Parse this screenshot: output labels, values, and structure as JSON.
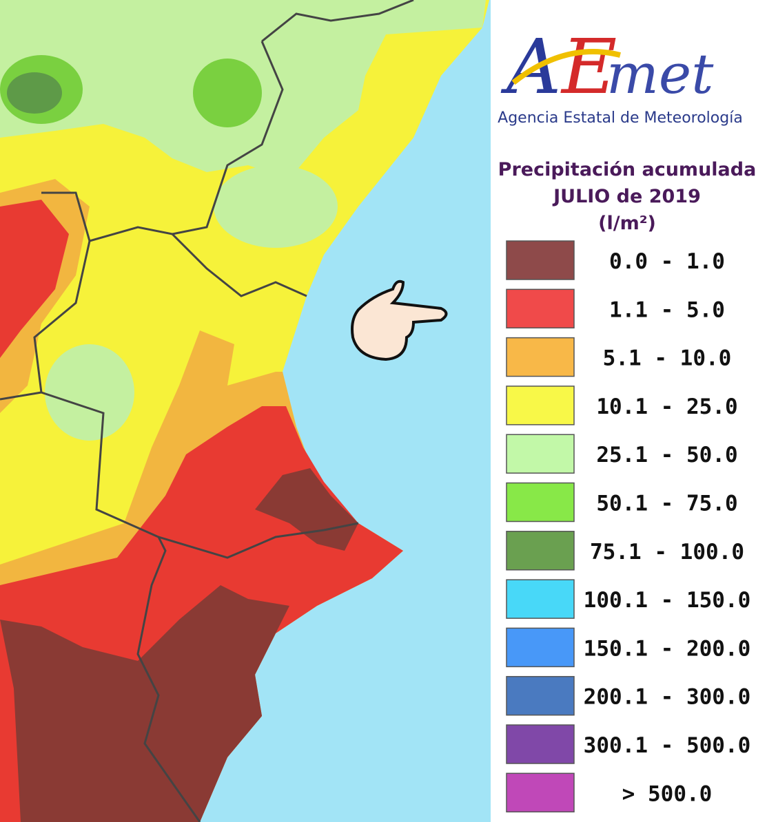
{
  "logo": {
    "parts": [
      {
        "text": "A",
        "color": "#2a3a9a"
      },
      {
        "text": "E",
        "color": "#d42a2a"
      },
      {
        "text": "met",
        "color": "#3a4aa8"
      }
    ],
    "agency": "Agencia Estatal de Meteorología"
  },
  "title": {
    "lines": [
      "Precipitación acumulada",
      "JULIO de 2019",
      "(l/m²)"
    ]
  },
  "legend": {
    "items": [
      {
        "label": "0.0 - 1.0",
        "color": "#8e4a4a"
      },
      {
        "label": "1.1 - 5.0",
        "color": "#f04a4a"
      },
      {
        "label": "5.1 - 10.0",
        "color": "#f8b848"
      },
      {
        "label": "10.1 - 25.0",
        "color": "#f8f848"
      },
      {
        "label": "25.1 - 50.0",
        "color": "#c2f8a8"
      },
      {
        "label": "50.1 - 75.0",
        "color": "#88e848"
      },
      {
        "label": "75.1 - 100.0",
        "color": "#6aa050"
      },
      {
        "label": "100.1 - 150.0",
        "color": "#48d8f8"
      },
      {
        "label": "150.1 - 200.0",
        "color": "#4898f8"
      },
      {
        "label": "200.1 - 300.0",
        "color": "#4a7ac0"
      },
      {
        "label": "300.1 - 500.0",
        "color": "#8048a8"
      },
      {
        "label": "> 500.0",
        "color": "#c048b8"
      }
    ]
  }
}
